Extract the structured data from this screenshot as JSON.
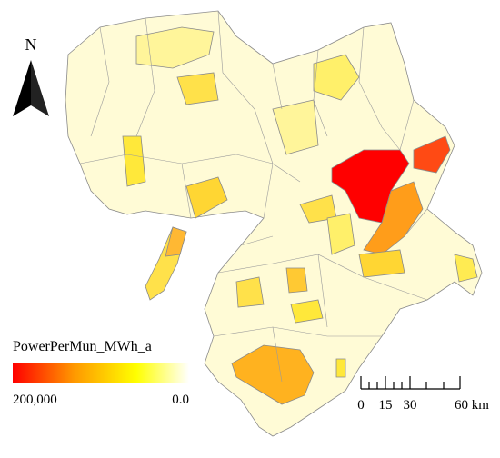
{
  "north_arrow": {
    "label": "N"
  },
  "legend": {
    "title": "PowerPerMun_MWh_a",
    "max_label": "200,000",
    "min_label": "0.0"
  },
  "scale_bar": {
    "labels": [
      "0",
      "15",
      "30",
      "60 km"
    ]
  }
}
